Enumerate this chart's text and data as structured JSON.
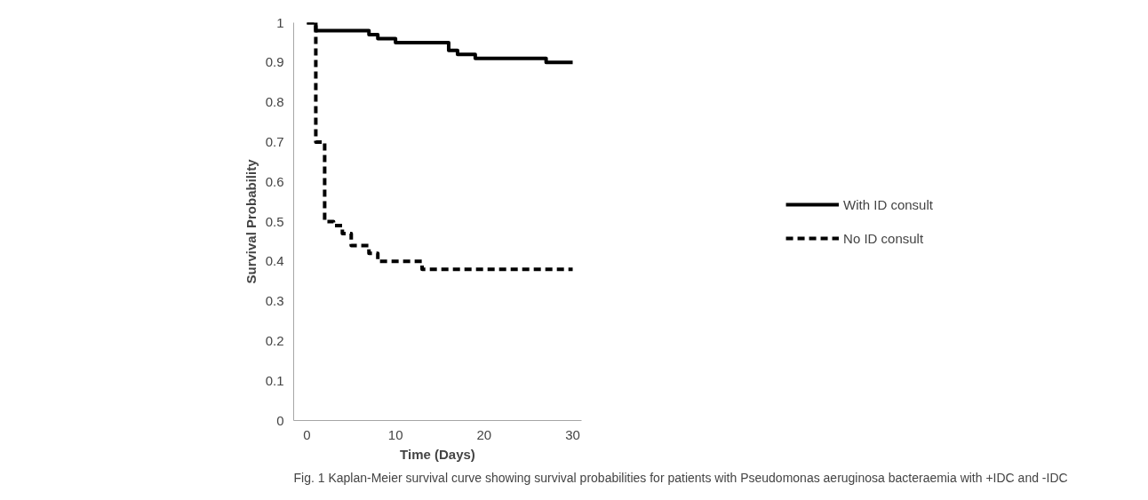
{
  "chart_data": {
    "type": "step",
    "xlabel": "Time (Days)",
    "ylabel": "Survival Probability",
    "annotations": [
      "Fig. 1 Kaplan-Meier survival curve showing survival probabilities for patients with Pseudomonas aeruginosa bacteraemia with +IDC and -IDC"
    ],
    "series": [
      {
        "name": "With ID consult",
        "color": "#000000",
        "line_style": "solid",
        "x": [
          0,
          1,
          7,
          8,
          10,
          16,
          17,
          19,
          27,
          30
        ],
        "values": [
          1,
          0.98,
          0.97,
          0.96,
          0.95,
          0.93,
          0.92,
          0.91,
          0.9,
          0.9
        ]
      },
      {
        "name": "No ID consult",
        "color": "#000000",
        "line_style": "dashed",
        "x": [
          0,
          1,
          2,
          3,
          4,
          5,
          7,
          8,
          13,
          30
        ],
        "values": [
          1,
          0.7,
          0.5,
          0.49,
          0.47,
          0.44,
          0.42,
          0.4,
          0.38,
          0.38
        ]
      }
    ],
    "xlim": [
      -1.5,
      31
    ],
    "ylim": [
      0,
      1
    ],
    "xticks": [
      0,
      10,
      20,
      30
    ],
    "yticks": [
      0,
      0.1,
      0.2,
      0.3,
      0.4,
      0.5,
      0.6,
      0.7,
      0.8,
      0.9,
      1
    ],
    "grid": false,
    "legend": "right",
    "marker": "none"
  }
}
